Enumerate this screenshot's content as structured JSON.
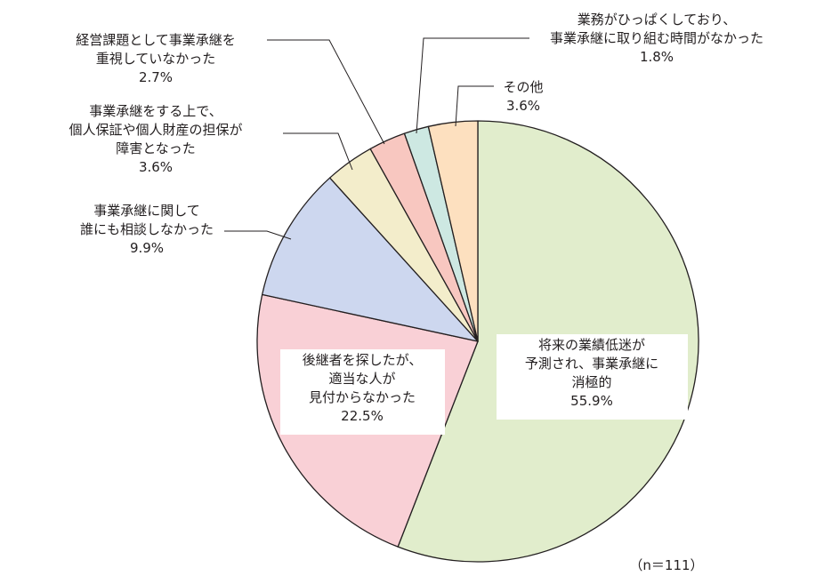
{
  "chart_data": {
    "type": "pie",
    "title": "",
    "note": "（n＝111）",
    "start_angle_deg": 0,
    "direction": "clockwise",
    "slices": [
      {
        "label_lines": [
          "将来の業績低迷が",
          "予測され、事業承継に",
          "消極的"
        ],
        "value": 55.9,
        "value_text": "55.9%",
        "color": "#e1edcc"
      },
      {
        "label_lines": [
          "後継者を探したが、",
          "適当な人が",
          "見付からなかった"
        ],
        "value": 22.5,
        "value_text": "22.5%",
        "color": "#f9d0d6"
      },
      {
        "label_lines": [
          "事業承継に関して",
          "誰にも相談しなかった"
        ],
        "value": 9.9,
        "value_text": "9.9%",
        "color": "#cdd7ef"
      },
      {
        "label_lines": [
          "事業承継をする上で、",
          "個人保証や個人財産の担保が",
          "障害となった"
        ],
        "value": 3.6,
        "value_text": "3.6%",
        "color": "#f3edcb"
      },
      {
        "label_lines": [
          "経営課題として事業承継を",
          "重視していなかった"
        ],
        "value": 2.7,
        "value_text": "2.7%",
        "color": "#f8c7c0"
      },
      {
        "label_lines": [
          "業務がひっぱくしており、",
          "事業承継に取り組む時間がなかった"
        ],
        "value": 1.8,
        "value_text": "1.8%",
        "color": "#cde8e2"
      },
      {
        "label_lines": [
          "その他"
        ],
        "value": 3.6,
        "value_text": "3.6%",
        "color": "#fde0bf"
      }
    ]
  }
}
